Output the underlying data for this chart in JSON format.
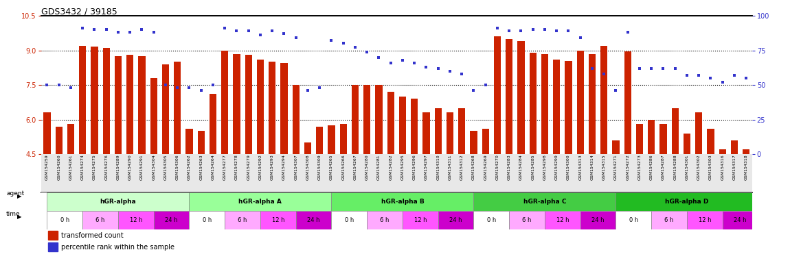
{
  "title": "GDS3432 / 39185",
  "samples": [
    "GSM154259",
    "GSM154260",
    "GSM154261",
    "GSM154274",
    "GSM154275",
    "GSM154276",
    "GSM154289",
    "GSM154290",
    "GSM154291",
    "GSM154304",
    "GSM154305",
    "GSM154306",
    "GSM154262",
    "GSM154263",
    "GSM154264",
    "GSM154277",
    "GSM154278",
    "GSM154279",
    "GSM154292",
    "GSM154293",
    "GSM154294",
    "GSM154307",
    "GSM154308",
    "GSM154309",
    "GSM154265",
    "GSM154266",
    "GSM154267",
    "GSM154280",
    "GSM154281",
    "GSM154282",
    "GSM154295",
    "GSM154296",
    "GSM154297",
    "GSM154310",
    "GSM154311",
    "GSM154312",
    "GSM154268",
    "GSM154269",
    "GSM154270",
    "GSM154283",
    "GSM154284",
    "GSM154285",
    "GSM154298",
    "GSM154299",
    "GSM154300",
    "GSM154313",
    "GSM154314",
    "GSM154315",
    "GSM154271",
    "GSM154272",
    "GSM154273",
    "GSM154286",
    "GSM154287",
    "GSM154288",
    "GSM154301",
    "GSM154302",
    "GSM154303",
    "GSM154316",
    "GSM154317",
    "GSM154318"
  ],
  "bar_values": [
    6.3,
    5.7,
    5.8,
    9.2,
    9.15,
    9.1,
    8.75,
    8.8,
    8.75,
    7.8,
    8.4,
    8.5,
    5.6,
    5.5,
    7.1,
    9.0,
    8.85,
    8.8,
    8.6,
    8.5,
    8.45,
    7.5,
    5.0,
    5.7,
    5.75,
    5.8,
    7.5,
    7.5,
    7.5,
    7.2,
    7.0,
    6.9,
    6.3,
    6.5,
    6.3,
    6.5,
    5.5,
    5.6,
    9.6,
    9.5,
    9.4,
    8.9,
    8.85,
    8.6,
    8.55,
    9.0,
    8.85,
    9.2,
    5.1,
    8.95,
    5.8,
    6.0,
    5.8,
    6.5,
    5.4,
    6.3,
    5.6,
    4.7,
    5.1,
    4.7
  ],
  "dot_values_pct": [
    50,
    50,
    48,
    91,
    90,
    90,
    88,
    88,
    90,
    88,
    50,
    48,
    48,
    46,
    50,
    91,
    89,
    89,
    86,
    89,
    87,
    84,
    46,
    48,
    82,
    80,
    77,
    74,
    70,
    66,
    68,
    66,
    63,
    62,
    60,
    58,
    46,
    50,
    91,
    89,
    89,
    90,
    90,
    89,
    89,
    84,
    62,
    58,
    46,
    88,
    62,
    62,
    62,
    62,
    57,
    57,
    55,
    52,
    57,
    55
  ],
  "ylim_left": [
    4.5,
    10.5
  ],
  "yticks_left": [
    4.5,
    6.0,
    7.5,
    9.0,
    10.5
  ],
  "ylim_right": [
    0,
    100
  ],
  "yticks_right": [
    0,
    25,
    50,
    75,
    100
  ],
  "bar_color": "#CC2200",
  "dot_color": "#3333CC",
  "groups": [
    {
      "label": "hGR-alpha",
      "start": 0,
      "end": 12,
      "color": "#CCFFCC"
    },
    {
      "label": "hGR-alpha A",
      "start": 12,
      "end": 24,
      "color": "#99FF99"
    },
    {
      "label": "hGR-alpha B",
      "start": 24,
      "end": 36,
      "color": "#66EE66"
    },
    {
      "label": "hGR-alpha C",
      "start": 36,
      "end": 48,
      "color": "#44CC44"
    },
    {
      "label": "hGR-alpha D",
      "start": 48,
      "end": 60,
      "color": "#22BB22"
    }
  ],
  "time_labels": [
    "0 h",
    "6 h",
    "12 h",
    "24 h"
  ],
  "time_colors": [
    "#FFFFFF",
    "#FFAAFF",
    "#FF55FF",
    "#CC00CC"
  ],
  "legend_bar": "transformed count",
  "legend_dot": "percentile rank within the sample",
  "axis_label_color_left": "#CC2200",
  "axis_label_color_right": "#3333CC",
  "bg_color": "#E8E8E8"
}
